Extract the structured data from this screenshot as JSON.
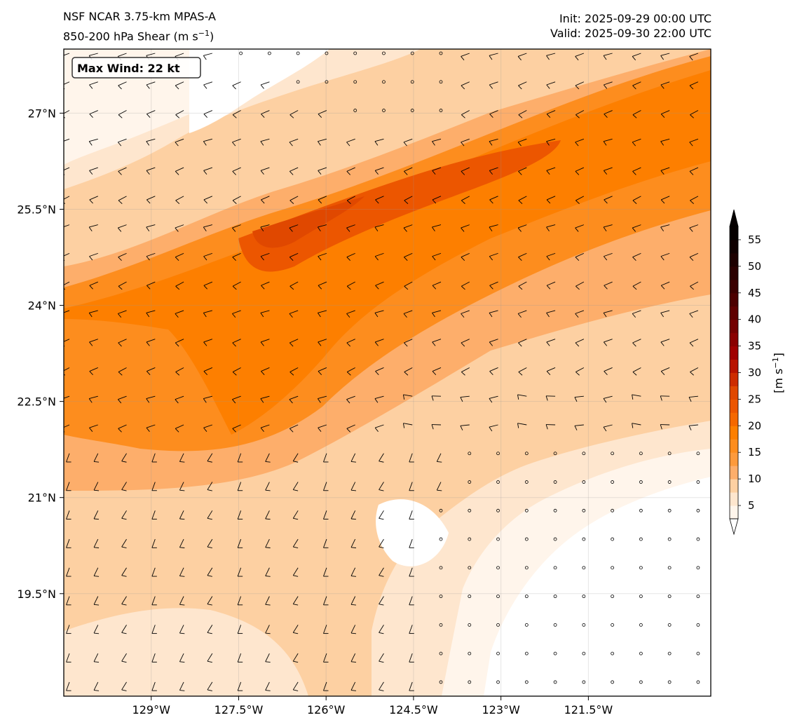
{
  "header": {
    "model": "NSF NCAR 3.75-km MPAS-A",
    "field_prefix": "850-200 hPa Shear (m s",
    "field_exp": "−1",
    "field_suffix": ")",
    "init": "Init: 2025-09-29 00:00 UTC",
    "valid": "Valid: 2025-09-30 22:00 UTC"
  },
  "annotation": {
    "max_wind": "Max Wind: 22 kt"
  },
  "map": {
    "lon_range": [
      -130.5,
      -119.4
    ],
    "lat_range": [
      17.9,
      28.0
    ],
    "lon_ticks": [
      {
        "value": -129.0,
        "label": "129°W"
      },
      {
        "value": -127.5,
        "label": "127.5°W"
      },
      {
        "value": -126.0,
        "label": "126°W"
      },
      {
        "value": -124.5,
        "label": "124.5°W"
      },
      {
        "value": -123.0,
        "label": "123°W"
      },
      {
        "value": -121.5,
        "label": "121.5°W"
      }
    ],
    "lat_ticks": [
      {
        "value": 27.0,
        "label": "27°N"
      },
      {
        "value": 25.5,
        "label": "25.5°N"
      },
      {
        "value": 24.0,
        "label": "24°N"
      },
      {
        "value": 22.5,
        "label": "22.5°N"
      },
      {
        "value": 21.0,
        "label": "21°N"
      },
      {
        "value": 19.5,
        "label": "19.5°N"
      }
    ],
    "gridlines": true
  },
  "colorbar": {
    "label_prefix": "[m s",
    "label_exp": "−1",
    "label_suffix": "]",
    "levels": [
      2.5,
      5,
      7.5,
      10,
      12.5,
      15,
      17.5,
      20,
      22.5,
      25,
      27.5,
      30,
      32.5,
      35,
      37.5,
      40,
      42.5,
      45,
      47.5,
      50,
      52.5,
      55,
      57.5
    ],
    "tick_labels": [
      "5",
      "10",
      "15",
      "20",
      "25",
      "30",
      "35",
      "40",
      "45",
      "50",
      "55"
    ],
    "colors": [
      "#fff5eb",
      "#fee6ce",
      "#fdd0a2",
      "#fdae6b",
      "#fd9a3c",
      "#fd8d1e",
      "#fd7f00",
      "#f56800",
      "#ec5600",
      "#e04800",
      "#cd2c00",
      "#b81300",
      "#a00000",
      "#8a0000",
      "#740000",
      "#5f0000",
      "#4c0000",
      "#3a0000",
      "#2a0000",
      "#1c0000",
      "#0f0000",
      "#050000"
    ],
    "extend": "both"
  }
}
